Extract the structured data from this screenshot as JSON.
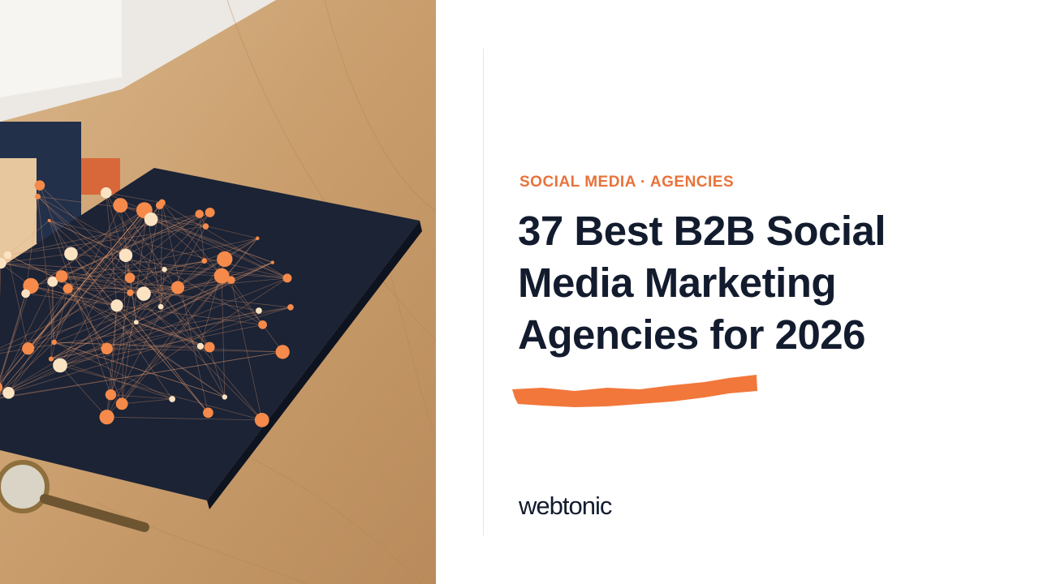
{
  "category": "SOCIAL MEDIA · AGENCIES",
  "title": "37 Best B2B Social Media Marketing Agencies for 2026",
  "logo": "webtonic"
}
